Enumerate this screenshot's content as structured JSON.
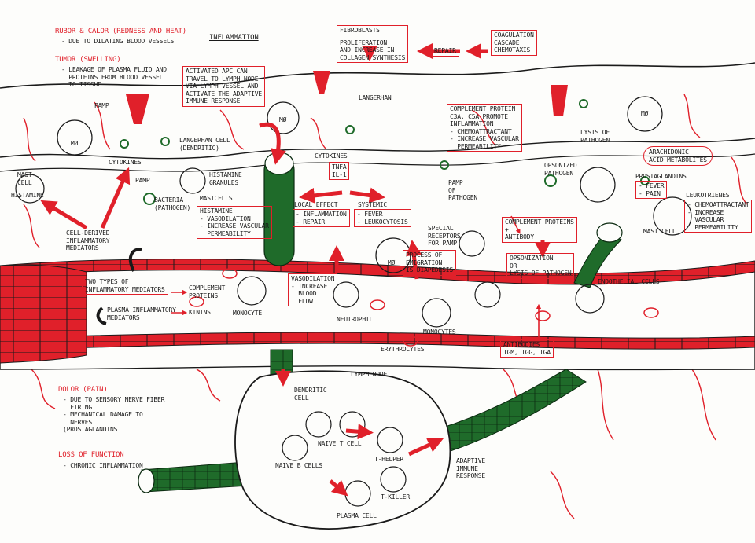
{
  "title": "INFLAMMATION",
  "signs": {
    "rubor_title": "RUBOR & CALOR (REDNESS AND HEAT)",
    "rubor_text": "- DUE TO DILATING BLOOD VESSELS",
    "tumor_title": "TUMOR (SWELLING)",
    "tumor_text": "- LEAKAGE OF PLASMA FLUID AND\n  PROTEINS FROM BLOOD VESSEL\n  TO TISSUE",
    "dolor_title": "DOLOR (PAIN)",
    "dolor_text": "- DUE TO SENSORY NERVE FIBER\n  FIRING\n- MECHANICAL DAMAGE TO\n  NERVES\n(PROSTAGLANDINS",
    "loss_title": "LOSS OF FUNCTION",
    "loss_text": "- CHRONIC INFLAMMATION"
  },
  "boxes": {
    "fibroblasts": "FIBROBLASTS",
    "proliferation": "PROLIFERATION\nAND INCREASE IN\nCOLLAGEN SYNTHESIS",
    "repair": "REPAIR",
    "coagulation": "COAGULATION\nCASCADE\nCHEMOTAXIS",
    "activated_apc": "ACTIVATED APC CAN\nTRAVEL TO LYMPH NODE\nVIA LYMPH VESSEL AND\nACTIVATE THE ADAPTIVE\nIMMUNE RESPONSE",
    "complement_c3": "COMPLEMENT PROTEIN\nC3a, C5a PROMOTE\nINFLAMMATION\n- CHEMOATTRACTANT\n- INCREASE VASCULAR\n  PERMEABILITY",
    "arachidonic": "ARACHIDONIC\nACID METABOLITES",
    "prostaglandins": "PROSTAGLANDINS",
    "fever_pain": "- FEVER\n- PAIN",
    "leukotrienes": "LEUKOTRIENES",
    "leuko_effects": "- CHEMOATTRACTANT\n- INCREASE\n  VASCULAR\n  PERMEABILITY",
    "tnf": "TNFα\nIL-1",
    "local_effect": "LOCAL EFFECT",
    "inflam_repair": "- INFLAMMATION\n- REPAIR",
    "systemic": "SYSTEMIC",
    "fever_leuko": "- FEVER\n- LEUKOCYTOSIS",
    "histamine_effects": "HISTAMINE\n- VASODILATION\n- INCREASE VASCULAR\n  PERMEABILITY",
    "complement_antibody": "COMPLEMENT PROTEINS\n+\nANTIBODY",
    "opsonization": "OPSONIZATION\nOR\nLYSIS OF PATHOGEN",
    "emigration": "PROCESS OF\nEMIGRATION\nIS DIAPEDESIS",
    "two_types": "TWO TYPES OF\nINFLAMMATORY MEDIATORS",
    "vasodilation": "VASODILATION\n- INCREASE\n  BLOOD\n  FLOW",
    "antibodies": "ANTIBODIES\nIgM, IgG, IgA"
  },
  "labels": {
    "langerhan_top": "LANGERHAN",
    "mo1": "Mø",
    "mo2": "Mø",
    "mo3": "Mø",
    "mo4": "Mø",
    "pamp1": "PAMP",
    "pamp2": "PAMP",
    "pamp_of_pathogen": "PAMP\nOF\nPATHOGEN",
    "langerhan_cell": "LANGERHAN CELL\n(DENDRITIC)",
    "cytokines1": "CYTOKINES",
    "cytokines2": "CYTOKINES",
    "lysis": "LYSIS OF\nPATHOGEN",
    "mast_cell": "MAST\nCELL",
    "histamine": "HISTAMINE",
    "histamine_granules": "HISTAMINE\nGRANULES",
    "mastcells": "MASTCELLS",
    "bacteria": "BACTERIA\n(PATHOGEN)",
    "cell_derived": "CELL-DERIVED\nINFLAMMATORY\nMEDIATORS",
    "special_receptors": "SPECIAL\nRECEPTORS\nFOR PAMP",
    "opsonized": "OPSONIZED\nPATHOGEN",
    "mast_cell_right": "MAST CELL",
    "complement_proteins": "COMPLEMENT\nPROTEINS",
    "kinins": "KININS",
    "plasma_mediators": "PLASMA INFLAMMATORY\nMEDIATORS",
    "monocyte": "MONOCYTE",
    "neutrophil": "NEUTROPHIL",
    "monocytes": "MONOCYTES",
    "erythrocytes": "ERYTHROCYTES",
    "endothelial": "ENDOTHELIAL CELLS",
    "lymph_node": "LYMPH NODE",
    "dendritic_cell": "DENDRITIC\nCELL",
    "naive_t": "NAIVE T CELL",
    "naive_b": "NAIVE B CELLS",
    "t_helper": "T-HELPER",
    "t_killer": "T-KILLER",
    "plasma_cell": "PLASMA CELL",
    "adaptive": "ADAPTIVE\nIMMUNE\nRESPONSE"
  },
  "colors": {
    "red": "#e0202a",
    "green": "#1f6b2a",
    "ink": "#1a1a1a"
  }
}
